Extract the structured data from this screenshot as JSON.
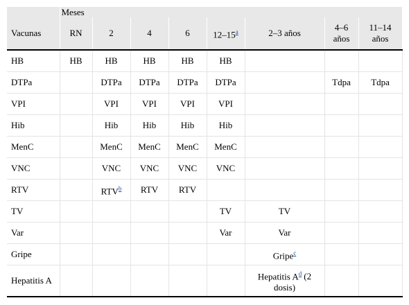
{
  "table": {
    "group_header": "Meses",
    "columns": [
      "Vacunas",
      "RN",
      "2",
      "4",
      "6",
      {
        "text": "12–15",
        "note": "a"
      },
      "2–3 años",
      "4–6 años",
      "11–14 años"
    ],
    "rows": [
      [
        "HB",
        "HB",
        "HB",
        "HB",
        "HB",
        "HB",
        null,
        null,
        null
      ],
      [
        "DTPa",
        null,
        "DTPa",
        "DTPa",
        "DTPa",
        "DTPa",
        null,
        "Tdpa",
        "Tdpa"
      ],
      [
        "VPI",
        null,
        "VPI",
        "VPI",
        "VPI",
        "VPI",
        null,
        null,
        null
      ],
      [
        "Hib",
        null,
        "Hib",
        "Hib",
        "Hib",
        "Hib",
        null,
        null,
        null
      ],
      [
        "MenC",
        null,
        "MenC",
        "MenC",
        "MenC",
        "MenC",
        null,
        null,
        null
      ],
      [
        "VNC",
        null,
        "VNC",
        "VNC",
        "VNC",
        "VNC",
        null,
        null,
        null
      ],
      [
        "RTV",
        null,
        {
          "text": "RTV",
          "note": "b"
        },
        "RTV",
        "RTV",
        null,
        null,
        null,
        null
      ],
      [
        "TV",
        null,
        null,
        null,
        null,
        "TV",
        "TV",
        null,
        null
      ],
      [
        "Var",
        null,
        null,
        null,
        null,
        "Var",
        "Var",
        null,
        null
      ],
      [
        "Gripe",
        null,
        null,
        null,
        null,
        null,
        {
          "text": "Gripe",
          "note": "c"
        },
        null,
        null
      ],
      [
        "Hepatitis A",
        null,
        null,
        null,
        null,
        null,
        {
          "text": "Hepatitis A",
          "note": "d",
          "after": "(2 dosis)"
        },
        null,
        null
      ]
    ]
  }
}
